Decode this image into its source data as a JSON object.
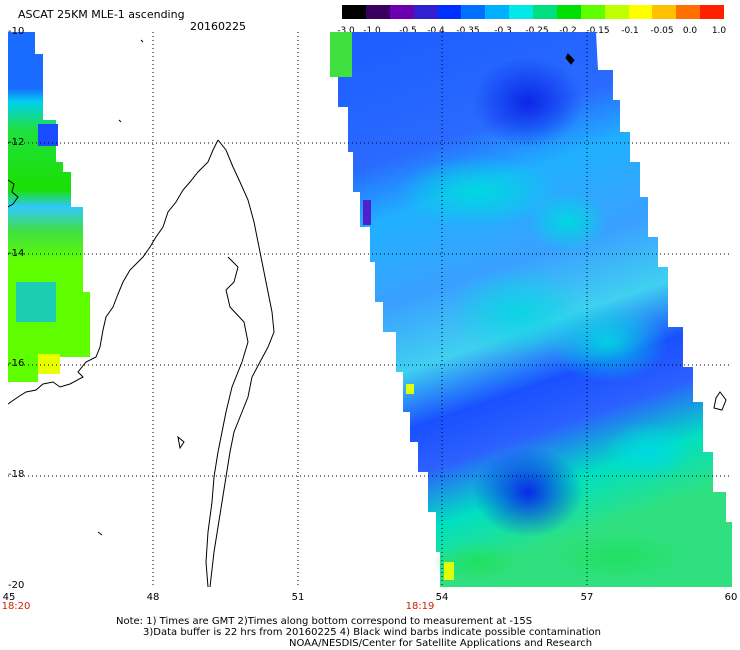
{
  "header": {
    "title": "ASCAT 25KM MLE-1 ascending",
    "date": "20160225"
  },
  "colorbar": {
    "labels": [
      "-3.0",
      "-1.0",
      "-0.5",
      "-0.4",
      "-0.35",
      "-0.3",
      "-0.25",
      "-0.2",
      "-0.15",
      "-0.1",
      "-0.05",
      "0.0",
      "1.0"
    ],
    "colors": [
      "#000000",
      "#3a0060",
      "#6a00b0",
      "#3020d0",
      "#0030ff",
      "#0070ff",
      "#00b0ff",
      "#00e8e8",
      "#00e080",
      "#00e000",
      "#60ff00",
      "#c0ff00",
      "#ffff00",
      "#ffc000",
      "#ff7000",
      "#ff2000"
    ]
  },
  "axes": {
    "lat_labels": [
      "-10",
      "-12",
      "-14",
      "-16",
      "-18",
      "-20"
    ],
    "lon_labels": [
      "45",
      "48",
      "51",
      "54",
      "57",
      "60"
    ]
  },
  "pass_times": {
    "left": "18:20",
    "middle": "18:19"
  },
  "notes": {
    "line1": "Note: 1) Times are GMT 2)Times along bottom correspond to measurement at -15S",
    "line2": "3)Data buffer is 22 hrs from 20160225 4) Black wind barbs indicate possible contamination",
    "line3": "NOAA/NESDIS/Center for Satellite Applications and Research"
  },
  "map": {
    "lat_range": [
      -20,
      -10
    ],
    "lon_range": [
      45,
      60
    ]
  }
}
